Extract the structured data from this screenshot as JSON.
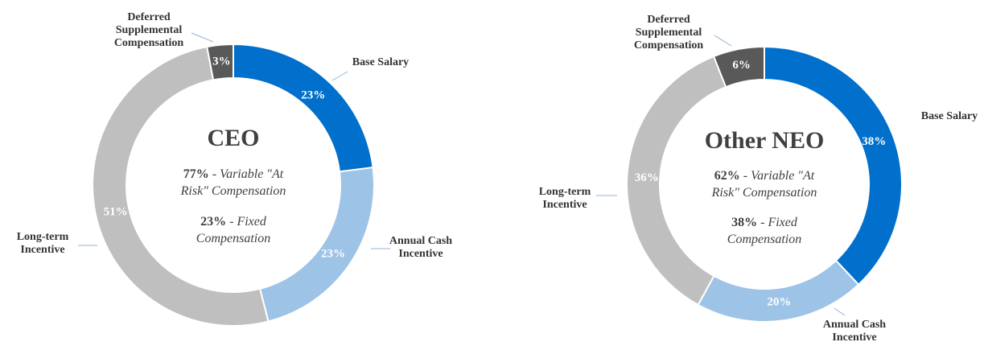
{
  "chart_data": [
    {
      "type": "pie",
      "style": "donut",
      "title": "CEO",
      "summary": {
        "variable_pct": "77%",
        "variable_text": " - Variable \"At",
        "variable_text2": "Risk\" Compensation",
        "fixed_pct": "23%",
        "fixed_text": " - Fixed",
        "fixed_text2": "Compensation"
      },
      "slices": [
        {
          "key": "base",
          "label_lines": [
            "Base Salary"
          ],
          "value": 23,
          "value_label": "23%",
          "color": "#0070CC"
        },
        {
          "key": "aci",
          "label_lines": [
            "Annual Cash",
            "Incentive"
          ],
          "value": 23,
          "value_label": "23%",
          "color": "#9DC3E6"
        },
        {
          "key": "lti",
          "label_lines": [
            "Long-term",
            "Incentive"
          ],
          "value": 51,
          "value_label": "51%",
          "color": "#BFBFBF"
        },
        {
          "key": "dsc",
          "label_lines": [
            "Deferred",
            "Supplemental",
            "Compensation"
          ],
          "value": 3,
          "value_label": "3%",
          "color": "#595959"
        }
      ]
    },
    {
      "type": "pie",
      "style": "donut",
      "title": "Other NEO",
      "summary": {
        "variable_pct": "62%",
        "variable_text": " - Variable \"At",
        "variable_text2": "Risk\" Compensation",
        "fixed_pct": "38%",
        "fixed_text": " - Fixed",
        "fixed_text2": "Compensation"
      },
      "slices": [
        {
          "key": "base",
          "label_lines": [
            "Base Salary"
          ],
          "value": 38,
          "value_label": "38%",
          "color": "#0070CC"
        },
        {
          "key": "aci",
          "label_lines": [
            "Annual Cash",
            "Incentive"
          ],
          "value": 20,
          "value_label": "20%",
          "color": "#9DC3E6"
        },
        {
          "key": "lti",
          "label_lines": [
            "Long-term",
            "Incentive"
          ],
          "value": 36,
          "value_label": "36%",
          "color": "#BFBFBF"
        },
        {
          "key": "dsc",
          "label_lines": [
            "Deferred",
            "Supplemental",
            "Compensation"
          ],
          "value": 6,
          "value_label": "6%",
          "color": "#595959"
        }
      ]
    }
  ]
}
